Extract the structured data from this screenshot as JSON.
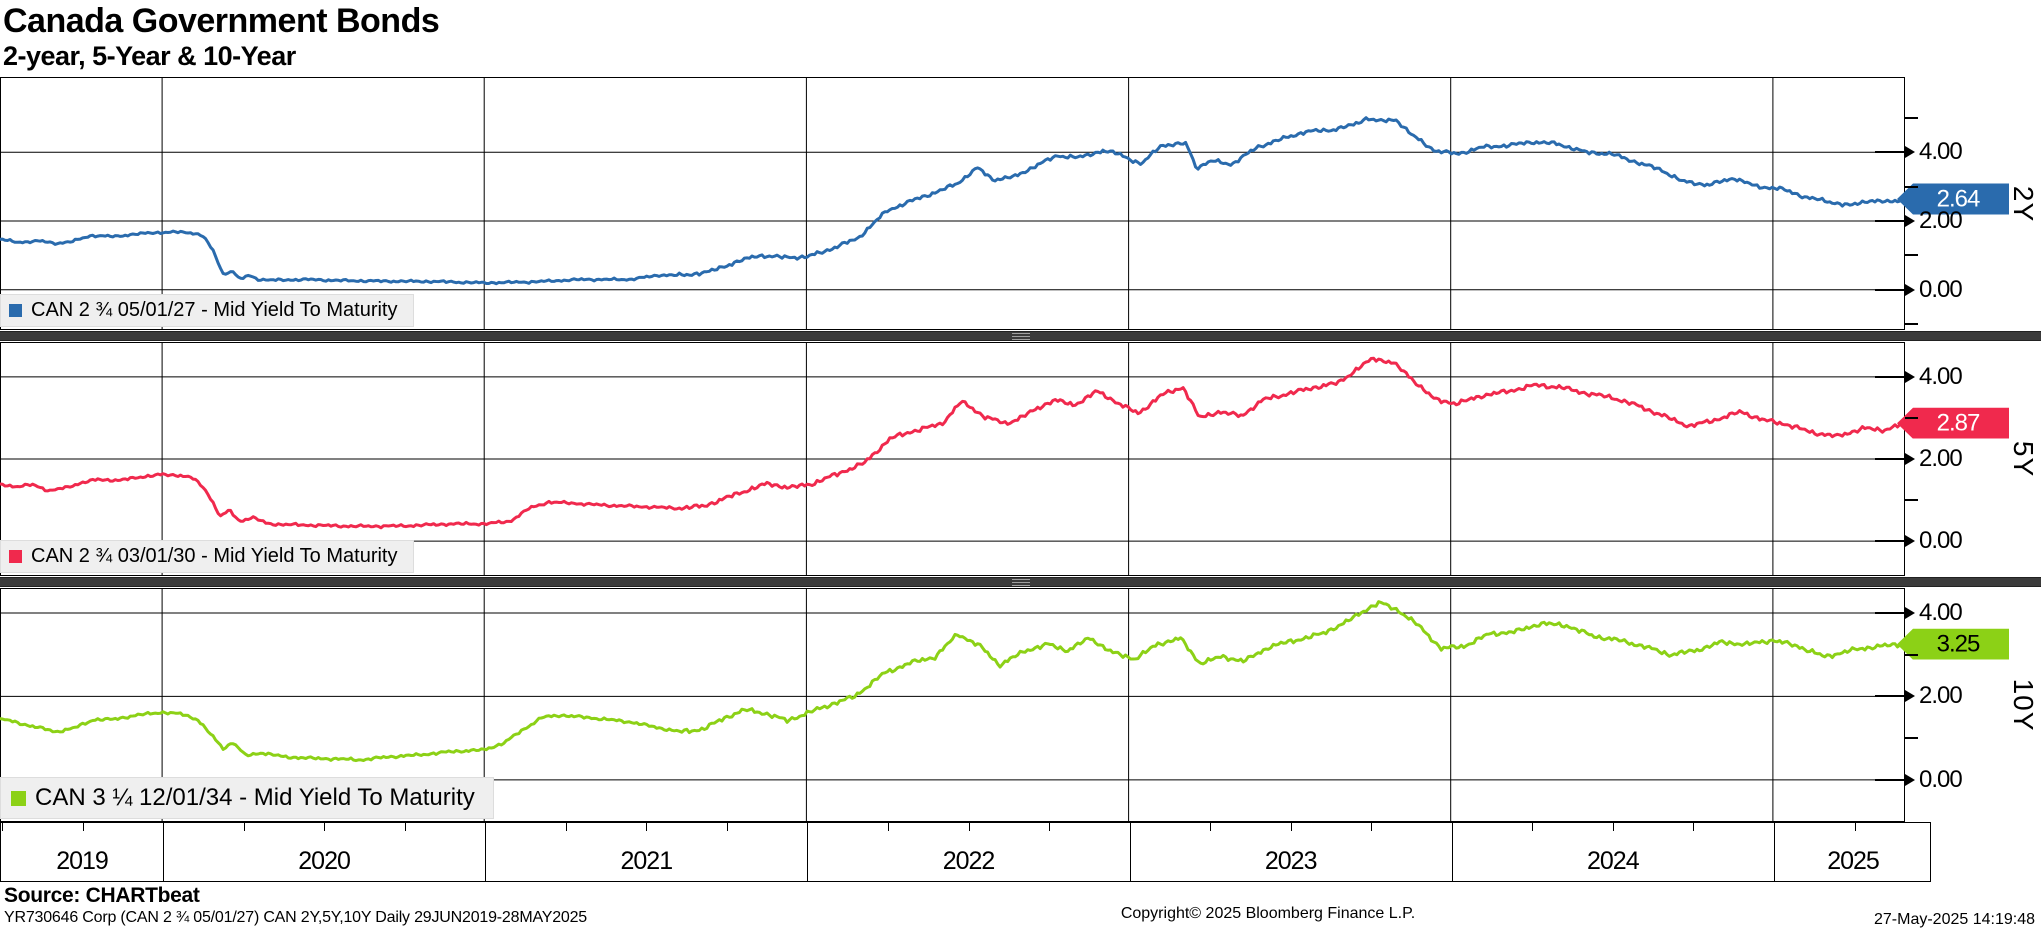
{
  "header": {
    "title": "Canada Government Bonds",
    "subtitle": "2-year, 5-Year & 10-Year"
  },
  "footer": {
    "source": "Source: CHARTbeat",
    "program_line": "YR730646 Corp (CAN 2 ¾  05/01/27) CAN 2Y,5Y,10Y  Daily 29JUN2019-28MAY2025",
    "copyright": "Copyright© 2025 Bloomberg Finance L.P.",
    "timestamp": "27-May-2025 14:19:48"
  },
  "chart_data": {
    "type": "line",
    "title": "Canada Government Bonds",
    "subtitle": "2-year, 5-Year & 10-Year",
    "x_start": 2019.497,
    "x_end": 2025.41,
    "x_axis": {
      "year_lines": [
        2020,
        2021,
        2022,
        2023,
        2024,
        2025
      ],
      "year_labels": [
        "2019",
        "2020",
        "2021",
        "2022",
        "2023",
        "2024",
        "2025"
      ],
      "quarter_tick_step": 0.25,
      "grid": "on"
    },
    "panels": [
      {
        "id": "2y",
        "panel_label": "2Y",
        "legend": "CAN 2 ¾  05/01/27 - Mid Yield To Maturity",
        "color": "#2a6bad",
        "tag_text_color": "#ffffff",
        "last_value": "2.64",
        "last_value_num": 2.64,
        "ylim": [
          -1.17,
          6.19
        ],
        "major_ticks": [
          {
            "value": 4,
            "label": "4.00"
          },
          {
            "value": 2,
            "label": "2.00"
          },
          {
            "value": 0,
            "label": "0.00"
          }
        ],
        "minor_ticks": [
          5,
          3,
          1,
          -1
        ],
        "points": [
          [
            2019.5,
            1.47
          ],
          [
            2019.55,
            1.38
          ],
          [
            2019.62,
            1.42
          ],
          [
            2019.67,
            1.35
          ],
          [
            2019.72,
            1.4
          ],
          [
            2019.78,
            1.58
          ],
          [
            2019.85,
            1.55
          ],
          [
            2019.92,
            1.62
          ],
          [
            2019.97,
            1.66
          ],
          [
            2020.05,
            1.68
          ],
          [
            2020.1,
            1.65
          ],
          [
            2020.13,
            1.55
          ],
          [
            2020.16,
            1.1
          ],
          [
            2020.19,
            0.45
          ],
          [
            2020.22,
            0.55
          ],
          [
            2020.24,
            0.3
          ],
          [
            2020.27,
            0.42
          ],
          [
            2020.3,
            0.3
          ],
          [
            2020.35,
            0.28
          ],
          [
            2020.45,
            0.3
          ],
          [
            2020.55,
            0.27
          ],
          [
            2020.7,
            0.25
          ],
          [
            2020.85,
            0.24
          ],
          [
            2021.0,
            0.2
          ],
          [
            2021.15,
            0.23
          ],
          [
            2021.3,
            0.3
          ],
          [
            2021.45,
            0.3
          ],
          [
            2021.55,
            0.43
          ],
          [
            2021.62,
            0.42
          ],
          [
            2021.7,
            0.53
          ],
          [
            2021.78,
            0.8
          ],
          [
            2021.85,
            1.0
          ],
          [
            2021.92,
            0.95
          ],
          [
            2022.0,
            0.95
          ],
          [
            2022.08,
            1.2
          ],
          [
            2022.16,
            1.5
          ],
          [
            2022.25,
            2.3
          ],
          [
            2022.33,
            2.6
          ],
          [
            2022.42,
            2.9
          ],
          [
            2022.47,
            3.1
          ],
          [
            2022.53,
            3.55
          ],
          [
            2022.58,
            3.2
          ],
          [
            2022.65,
            3.3
          ],
          [
            2022.72,
            3.65
          ],
          [
            2022.78,
            3.9
          ],
          [
            2022.85,
            3.85
          ],
          [
            2022.92,
            4.05
          ],
          [
            2022.97,
            3.95
          ],
          [
            2023.04,
            3.65
          ],
          [
            2023.1,
            4.2
          ],
          [
            2023.18,
            4.25
          ],
          [
            2023.21,
            3.55
          ],
          [
            2023.26,
            3.75
          ],
          [
            2023.32,
            3.65
          ],
          [
            2023.4,
            4.15
          ],
          [
            2023.48,
            4.4
          ],
          [
            2023.55,
            4.6
          ],
          [
            2023.63,
            4.65
          ],
          [
            2023.7,
            4.8
          ],
          [
            2023.74,
            5.0
          ],
          [
            2023.78,
            4.9
          ],
          [
            2023.83,
            4.95
          ],
          [
            2023.88,
            4.5
          ],
          [
            2023.95,
            4.05
          ],
          [
            2024.02,
            3.95
          ],
          [
            2024.1,
            4.15
          ],
          [
            2024.18,
            4.2
          ],
          [
            2024.25,
            4.3
          ],
          [
            2024.33,
            4.25
          ],
          [
            2024.42,
            4.0
          ],
          [
            2024.5,
            3.95
          ],
          [
            2024.58,
            3.7
          ],
          [
            2024.65,
            3.5
          ],
          [
            2024.72,
            3.15
          ],
          [
            2024.8,
            3.05
          ],
          [
            2024.88,
            3.25
          ],
          [
            2024.95,
            3.0
          ],
          [
            2025.02,
            2.95
          ],
          [
            2025.1,
            2.7
          ],
          [
            2025.18,
            2.55
          ],
          [
            2025.24,
            2.45
          ],
          [
            2025.3,
            2.6
          ],
          [
            2025.36,
            2.55
          ],
          [
            2025.41,
            2.64
          ]
        ]
      },
      {
        "id": "5y",
        "panel_label": "5Y",
        "legend": "CAN 2 ¾  03/01/30 - Mid Yield To Maturity",
        "color": "#f0294d",
        "tag_text_color": "#ffffff",
        "last_value": "2.87",
        "last_value_num": 2.87,
        "ylim": [
          -0.85,
          4.85
        ],
        "major_ticks": [
          {
            "value": 4,
            "label": "4.00"
          },
          {
            "value": 2,
            "label": "2.00"
          },
          {
            "value": 0,
            "label": "0.00"
          }
        ],
        "minor_ticks": [
          3,
          1
        ],
        "points": [
          [
            2019.5,
            1.39
          ],
          [
            2019.55,
            1.32
          ],
          [
            2019.6,
            1.38
          ],
          [
            2019.65,
            1.22
          ],
          [
            2019.7,
            1.3
          ],
          [
            2019.75,
            1.42
          ],
          [
            2019.8,
            1.5
          ],
          [
            2019.87,
            1.48
          ],
          [
            2019.93,
            1.56
          ],
          [
            2020.0,
            1.62
          ],
          [
            2020.06,
            1.6
          ],
          [
            2020.1,
            1.52
          ],
          [
            2020.14,
            1.2
          ],
          [
            2020.18,
            0.6
          ],
          [
            2020.21,
            0.75
          ],
          [
            2020.24,
            0.48
          ],
          [
            2020.28,
            0.58
          ],
          [
            2020.33,
            0.42
          ],
          [
            2020.4,
            0.4
          ],
          [
            2020.5,
            0.38
          ],
          [
            2020.6,
            0.36
          ],
          [
            2020.75,
            0.37
          ],
          [
            2020.9,
            0.42
          ],
          [
            2021.0,
            0.42
          ],
          [
            2021.08,
            0.48
          ],
          [
            2021.14,
            0.8
          ],
          [
            2021.2,
            0.95
          ],
          [
            2021.28,
            0.92
          ],
          [
            2021.36,
            0.88
          ],
          [
            2021.45,
            0.85
          ],
          [
            2021.52,
            0.83
          ],
          [
            2021.6,
            0.8
          ],
          [
            2021.68,
            0.85
          ],
          [
            2021.75,
            1.05
          ],
          [
            2021.82,
            1.25
          ],
          [
            2021.88,
            1.4
          ],
          [
            2021.95,
            1.3
          ],
          [
            2022.02,
            1.4
          ],
          [
            2022.1,
            1.65
          ],
          [
            2022.18,
            1.9
          ],
          [
            2022.26,
            2.5
          ],
          [
            2022.34,
            2.7
          ],
          [
            2022.42,
            2.85
          ],
          [
            2022.48,
            3.4
          ],
          [
            2022.55,
            3.05
          ],
          [
            2022.62,
            2.85
          ],
          [
            2022.7,
            3.15
          ],
          [
            2022.77,
            3.45
          ],
          [
            2022.83,
            3.3
          ],
          [
            2022.9,
            3.65
          ],
          [
            2022.96,
            3.4
          ],
          [
            2023.03,
            3.1
          ],
          [
            2023.1,
            3.55
          ],
          [
            2023.17,
            3.75
          ],
          [
            2023.22,
            3.0
          ],
          [
            2023.28,
            3.15
          ],
          [
            2023.35,
            3.05
          ],
          [
            2023.42,
            3.45
          ],
          [
            2023.5,
            3.6
          ],
          [
            2023.58,
            3.75
          ],
          [
            2023.65,
            3.85
          ],
          [
            2023.72,
            4.25
          ],
          [
            2023.76,
            4.45
          ],
          [
            2023.82,
            4.35
          ],
          [
            2023.88,
            3.95
          ],
          [
            2023.95,
            3.45
          ],
          [
            2024.02,
            3.35
          ],
          [
            2024.1,
            3.55
          ],
          [
            2024.18,
            3.65
          ],
          [
            2024.26,
            3.8
          ],
          [
            2024.34,
            3.75
          ],
          [
            2024.42,
            3.6
          ],
          [
            2024.5,
            3.5
          ],
          [
            2024.58,
            3.3
          ],
          [
            2024.66,
            3.05
          ],
          [
            2024.74,
            2.8
          ],
          [
            2024.82,
            2.95
          ],
          [
            2024.9,
            3.15
          ],
          [
            2024.97,
            2.95
          ],
          [
            2025.04,
            2.85
          ],
          [
            2025.12,
            2.65
          ],
          [
            2025.2,
            2.55
          ],
          [
            2025.28,
            2.75
          ],
          [
            2025.34,
            2.7
          ],
          [
            2025.41,
            2.87
          ]
        ]
      },
      {
        "id": "10y",
        "panel_label": "10Y",
        "legend": "CAN 3 ¼  12/01/34 - Mid Yield To Maturity",
        "color": "#8cd116",
        "tag_text_color": "#000000",
        "last_value": "3.25",
        "last_value_num": 3.25,
        "ylim": [
          -1.01,
          4.6
        ],
        "major_ticks": [
          {
            "value": 4,
            "label": "4.00"
          },
          {
            "value": 2,
            "label": "2.00"
          },
          {
            "value": 0,
            "label": "0.00"
          }
        ],
        "minor_ticks": [
          3,
          1
        ],
        "points": [
          [
            2019.5,
            1.47
          ],
          [
            2019.56,
            1.35
          ],
          [
            2019.62,
            1.25
          ],
          [
            2019.67,
            1.15
          ],
          [
            2019.73,
            1.25
          ],
          [
            2019.79,
            1.45
          ],
          [
            2019.85,
            1.45
          ],
          [
            2019.92,
            1.55
          ],
          [
            2020.0,
            1.62
          ],
          [
            2020.06,
            1.58
          ],
          [
            2020.11,
            1.45
          ],
          [
            2020.15,
            1.1
          ],
          [
            2020.19,
            0.75
          ],
          [
            2020.22,
            0.9
          ],
          [
            2020.26,
            0.58
          ],
          [
            2020.31,
            0.65
          ],
          [
            2020.38,
            0.55
          ],
          [
            2020.46,
            0.52
          ],
          [
            2020.55,
            0.5
          ],
          [
            2020.62,
            0.48
          ],
          [
            2020.7,
            0.55
          ],
          [
            2020.8,
            0.6
          ],
          [
            2020.9,
            0.68
          ],
          [
            2021.0,
            0.72
          ],
          [
            2021.06,
            0.88
          ],
          [
            2021.12,
            1.2
          ],
          [
            2021.18,
            1.5
          ],
          [
            2021.24,
            1.55
          ],
          [
            2021.31,
            1.5
          ],
          [
            2021.38,
            1.45
          ],
          [
            2021.46,
            1.38
          ],
          [
            2021.54,
            1.25
          ],
          [
            2021.61,
            1.15
          ],
          [
            2021.68,
            1.22
          ],
          [
            2021.75,
            1.5
          ],
          [
            2021.81,
            1.68
          ],
          [
            2021.87,
            1.6
          ],
          [
            2021.94,
            1.42
          ],
          [
            2022.01,
            1.62
          ],
          [
            2022.08,
            1.82
          ],
          [
            2022.15,
            2.0
          ],
          [
            2022.24,
            2.55
          ],
          [
            2022.32,
            2.8
          ],
          [
            2022.4,
            2.95
          ],
          [
            2022.47,
            3.5
          ],
          [
            2022.54,
            3.2
          ],
          [
            2022.6,
            2.75
          ],
          [
            2022.68,
            3.1
          ],
          [
            2022.75,
            3.25
          ],
          [
            2022.81,
            3.1
          ],
          [
            2022.88,
            3.4
          ],
          [
            2022.95,
            3.05
          ],
          [
            2023.02,
            2.9
          ],
          [
            2023.09,
            3.25
          ],
          [
            2023.16,
            3.4
          ],
          [
            2023.22,
            2.8
          ],
          [
            2023.29,
            2.95
          ],
          [
            2023.36,
            2.85
          ],
          [
            2023.44,
            3.2
          ],
          [
            2023.52,
            3.35
          ],
          [
            2023.6,
            3.5
          ],
          [
            2023.68,
            3.8
          ],
          [
            2023.74,
            4.1
          ],
          [
            2023.78,
            4.25
          ],
          [
            2023.84,
            4.05
          ],
          [
            2023.9,
            3.7
          ],
          [
            2023.97,
            3.15
          ],
          [
            2024.04,
            3.2
          ],
          [
            2024.12,
            3.5
          ],
          [
            2024.2,
            3.55
          ],
          [
            2024.28,
            3.75
          ],
          [
            2024.36,
            3.7
          ],
          [
            2024.44,
            3.45
          ],
          [
            2024.52,
            3.35
          ],
          [
            2024.6,
            3.2
          ],
          [
            2024.68,
            3.0
          ],
          [
            2024.76,
            3.1
          ],
          [
            2024.84,
            3.3
          ],
          [
            2024.92,
            3.25
          ],
          [
            2025.0,
            3.35
          ],
          [
            2025.08,
            3.2
          ],
          [
            2025.16,
            2.95
          ],
          [
            2025.24,
            3.1
          ],
          [
            2025.32,
            3.2
          ],
          [
            2025.41,
            3.25
          ]
        ]
      }
    ]
  },
  "layout_colors": {
    "separator": "#3b3b3b",
    "grid": "#000000",
    "legend_bg": "#efefef"
  }
}
